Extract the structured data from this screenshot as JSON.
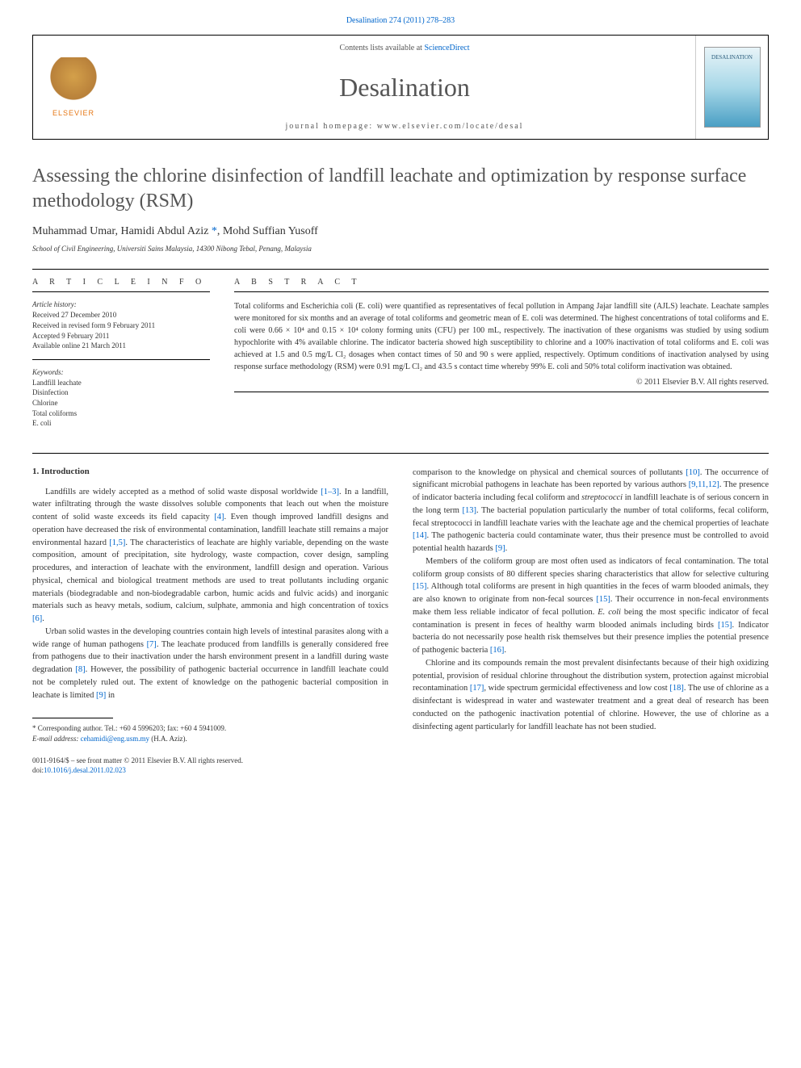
{
  "top_ref": "Desalination 274 (2011) 278–283",
  "header": {
    "contents_prefix": "Contents lists available at ",
    "contents_link": "ScienceDirect",
    "journal_name": "Desalination",
    "homepage": "journal homepage: www.elsevier.com/locate/desal",
    "elsevier_label": "ELSEVIER",
    "cover_label": "DESALINATION"
  },
  "title": "Assessing the chlorine disinfection of landfill leachate and optimization by response surface methodology (RSM)",
  "authors": "Muhammad Umar, Hamidi Abdul Aziz ",
  "corresponding_mark": "*",
  "authors_rest": ", Mohd Suffian Yusoff",
  "affiliation": "School of Civil Engineering, Universiti Sains Malaysia, 14300 Nibong Tebal, Penang, Malaysia",
  "article_info": {
    "heading": "A R T I C L E   I N F O",
    "history_label": "Article history:",
    "history": "Received 27 December 2010\nReceived in revised form 9 February 2011\nAccepted 9 February 2011\nAvailable online 21 March 2011",
    "keywords_label": "Keywords:",
    "keywords": "Landfill leachate\nDisinfection\nChlorine\nTotal coliforms\nE. coli"
  },
  "abstract": {
    "heading": "A B S T R A C T",
    "text": "Total coliforms and Escherichia coli (E. coli) were quantified as representatives of fecal pollution in Ampang Jajar landfill site (AJLS) leachate. Leachate samples were monitored for six months and an average of total coliforms and geometric mean of E. coli was determined. The highest concentrations of total coliforms and E. coli were 0.66 × 10⁴ and 0.15 × 10⁴ colony forming units (CFU) per 100 mL, respectively. The inactivation of these organisms was studied by using sodium hypochlorite with 4% available chlorine. The indicator bacteria showed high susceptibility to chlorine and a 100% inactivation of total coliforms and E. coli was achieved at 1.5 and 0.5 mg/L Cl₂ dosages when contact times of 50 and 90 s were applied, respectively. Optimum conditions of inactivation analysed by using response surface methodology (RSM) were 0.91 mg/L Cl₂ and 43.5 s contact time whereby 99% E. coli and 50% total coliform inactivation was obtained.",
    "copyright": "© 2011 Elsevier B.V. All rights reserved."
  },
  "intro_heading": "1. Introduction",
  "left_col": {
    "p1_a": "Landfills are widely accepted as a method of solid waste disposal worldwide ",
    "c1": "[1–3]",
    "p1_b": ". In a landfill, water infiltrating through the waste dissolves soluble components that leach out when the moisture content of solid waste exceeds its field capacity ",
    "c2": "[4]",
    "p1_c": ". Even though improved landfill designs and operation have decreased the risk of environmental contamination, landfill leachate still remains a major environmental hazard ",
    "c3": "[1,5]",
    "p1_d": ". The characteristics of leachate are highly variable, depending on the waste composition, amount of precipitation, site hydrology, waste compaction, cover design, sampling procedures, and interaction of leachate with the environment, landfill design and operation. Various physical, chemical and biological treatment methods are used to treat pollutants including organic materials (biodegradable and non-biodegradable carbon, humic acids and fulvic acids) and inorganic materials such as heavy metals, sodium, calcium, sulphate, ammonia and high concentration of toxics ",
    "c4": "[6]",
    "p1_e": ".",
    "p2_a": "Urban solid wastes in the developing countries contain high levels of intestinal parasites along with a wide range of human pathogens ",
    "c5": "[7]",
    "p2_b": ". The leachate produced from landfills is generally considered free from pathogens due to their inactivation under the harsh environment present in a landfill during waste degradation ",
    "c6": "[8]",
    "p2_c": ". However, the possibility of pathogenic bacterial occurrence in landfill leachate could not be completely ruled out. The extent of knowledge on the pathogenic bacterial composition in leachate is limited ",
    "c7": "[9]",
    "p2_d": " in"
  },
  "right_col": {
    "p1_a": "comparison to the knowledge on physical and chemical sources of pollutants ",
    "c1": "[10]",
    "p1_b": ". The occurrence of significant microbial pathogens in leachate has been reported by various authors ",
    "c2": "[9,11,12]",
    "p1_c": ". The presence of indicator bacteria including fecal coliform and ",
    "it1": "streptococci",
    "p1_d": " in landfill leachate is of serious concern in the long term ",
    "c3": "[13]",
    "p1_e": ". The bacterial population particularly the number of total coliforms, fecal coliform, fecal streptococci in landfill leachate varies with the leachate age and the chemical properties of leachate ",
    "c4": "[14]",
    "p1_f": ". The pathogenic bacteria could contaminate water, thus their presence must be controlled to avoid potential health hazards ",
    "c5": "[9]",
    "p1_g": ".",
    "p2_a": "Members of the coliform group are most often used as indicators of fecal contamination. The total coliform group consists of 80 different species sharing characteristics that allow for selective culturing ",
    "c6": "[15]",
    "p2_b": ". Although total coliforms are present in high quantities in the feces of warm blooded animals, they are also known to originate from non-fecal sources ",
    "c7": "[15]",
    "p2_c": ". Their occurrence in non-fecal environments make them less reliable indicator of fecal pollution. ",
    "it2": "E. coli",
    "p2_d": " being the most specific indicator of fecal contamination is present in feces of healthy warm blooded animals including birds ",
    "c8": "[15]",
    "p2_e": ". Indicator bacteria do not necessarily pose health risk themselves but their presence implies the potential presence of pathogenic bacteria ",
    "c9": "[16]",
    "p2_f": ".",
    "p3_a": "Chlorine and its compounds remain the most prevalent disinfectants because of their high oxidizing potential, provision of residual chlorine throughout the distribution system, protection against microbial recontamination ",
    "c10": "[17]",
    "p3_b": ", wide spectrum germicidal effectiveness and low cost ",
    "c11": "[18]",
    "p3_c": ". The use of chlorine as a disinfectant is widespread in water and wastewater treatment and a great deal of research has been conducted on the pathogenic inactivation potential of chlorine. However, the use of chlorine as a disinfecting agent particularly for landfill leachate has not been studied."
  },
  "footnote": {
    "corresponding": "* Corresponding author. Tel.: +60 4 5996203; fax: +60 4 5941009.",
    "email_label": "E-mail address: ",
    "email": "cehamidi@eng.usm.my",
    "email_suffix": " (H.A. Aziz)."
  },
  "bottom": {
    "line1": "0011-9164/$ – see front matter © 2011 Elsevier B.V. All rights reserved.",
    "line2": "doi:10.1016/j.desal.2011.02.023"
  },
  "colors": {
    "link": "#0066cc",
    "text": "#333333",
    "heading": "#555555",
    "orange": "#e67817"
  }
}
